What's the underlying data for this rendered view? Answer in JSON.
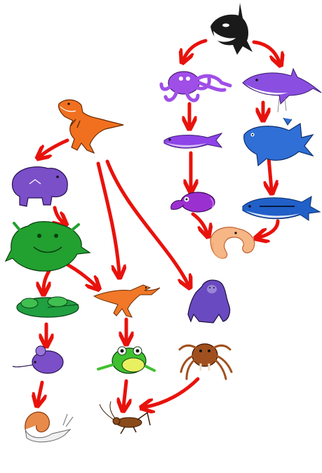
{
  "diagram": {
    "background": "#ffffff",
    "arrow_color": "#e8120c",
    "nodes": [
      {
        "id": "orca",
        "label": "orca",
        "color": "#1a1a1a"
      },
      {
        "id": "octopus",
        "label": "octopus",
        "color": "#9b3fe0"
      },
      {
        "id": "swordfish",
        "label": "swordfish",
        "color": "#8e44e8"
      },
      {
        "id": "shark",
        "label": "shark",
        "color": "#8a4fe0"
      },
      {
        "id": "coelacanth",
        "label": "coelacanth",
        "color": "#2f6fd6"
      },
      {
        "id": "cuttlefish",
        "label": "cuttlefish",
        "color": "#9b30d0"
      },
      {
        "id": "tuna",
        "label": "tuna",
        "color": "#2060c8"
      },
      {
        "id": "shrimp",
        "label": "shrimp",
        "color": "#f0a070"
      },
      {
        "id": "trex",
        "label": "t-rex",
        "color": "#f07020"
      },
      {
        "id": "hippo",
        "label": "hippo",
        "color": "#7a4fc8"
      },
      {
        "id": "toad",
        "label": "toad",
        "color": "#22a030"
      },
      {
        "id": "gorilla",
        "label": "gorilla",
        "color": "#6a4ac0"
      },
      {
        "id": "lilypad",
        "label": "lily pad",
        "color": "#20a040"
      },
      {
        "id": "velociraptor",
        "label": "velociraptor",
        "color": "#f07828"
      },
      {
        "id": "mouse",
        "label": "mouse",
        "color": "#7a4fc8"
      },
      {
        "id": "frog",
        "label": "frog",
        "color": "#40c030"
      },
      {
        "id": "spider",
        "label": "spider",
        "color": "#a0501e"
      },
      {
        "id": "snail",
        "label": "snail",
        "color": "#e88a4a"
      },
      {
        "id": "cricket",
        "label": "cricket",
        "color": "#8a4a1a"
      }
    ],
    "edges": [
      {
        "from": "orca",
        "to": "octopus"
      },
      {
        "from": "orca",
        "to": "shark"
      },
      {
        "from": "octopus",
        "to": "swordfish"
      },
      {
        "from": "shark",
        "to": "coelacanth"
      },
      {
        "from": "swordfish",
        "to": "cuttlefish"
      },
      {
        "from": "coelacanth",
        "to": "tuna"
      },
      {
        "from": "cuttlefish",
        "to": "shrimp"
      },
      {
        "from": "tuna",
        "to": "shrimp"
      },
      {
        "from": "trex",
        "to": "hippo"
      },
      {
        "from": "trex",
        "to": "velociraptor"
      },
      {
        "from": "trex",
        "to": "gorilla"
      },
      {
        "from": "hippo",
        "to": "toad"
      },
      {
        "from": "toad",
        "to": "lilypad"
      },
      {
        "from": "toad",
        "to": "velociraptor"
      },
      {
        "from": "lilypad",
        "to": "mouse"
      },
      {
        "from": "velociraptor",
        "to": "frog"
      },
      {
        "from": "mouse",
        "to": "snail"
      },
      {
        "from": "frog",
        "to": "cricket"
      },
      {
        "from": "spider",
        "to": "cricket"
      }
    ]
  }
}
